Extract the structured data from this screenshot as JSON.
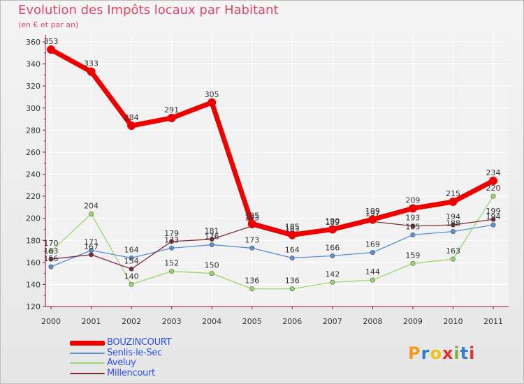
{
  "title": "Evolution des Impôts locaux par Habitant",
  "subtitle": "(en € et par an)",
  "logo": {
    "text": "Proxiti",
    "letters": [
      "P",
      "r",
      "o",
      "x",
      "i",
      "t",
      "i"
    ],
    "colors": [
      "#f29b1d",
      "#2f7fd6",
      "#f2c21b",
      "#e2332d",
      "#78b33b",
      "#2f7fd6",
      "#e2332d"
    ]
  },
  "chart_data": {
    "type": "line",
    "title": "Evolution des Impôts locaux par Habitant",
    "subtitle": "(en € et par an)",
    "xlabel": "",
    "ylabel": "",
    "x": [
      "2000",
      "2001",
      "2002",
      "2003",
      "2004",
      "2005",
      "2006",
      "2007",
      "2008",
      "2009",
      "2010",
      "2011"
    ],
    "ylim": [
      120,
      360
    ],
    "yticks": [
      120,
      140,
      160,
      180,
      200,
      220,
      240,
      260,
      280,
      300,
      320,
      340,
      360
    ],
    "grid": true,
    "legend_position": "bottom-left",
    "series": [
      {
        "name": "BOUZINCOURT",
        "color": "#ee0000",
        "highlight": true,
        "values": [
          353,
          333,
          284,
          291,
          305,
          195,
          185,
          190,
          199,
          209,
          215,
          234
        ],
        "labels": [
          "353",
          "333",
          "284",
          "291",
          "305",
          "195",
          "185",
          "190",
          "199",
          "209",
          "215",
          "234"
        ]
      },
      {
        "name": "Senlis-le-Sec",
        "color": "#5a8fd6",
        "highlight": false,
        "values": [
          156,
          171,
          164,
          173,
          176,
          173,
          164,
          166,
          169,
          185,
          188,
          194
        ],
        "labels": [
          "156",
          "171",
          "164",
          "173",
          "176",
          "173",
          "164",
          "166",
          "169",
          "185",
          "188",
          "194"
        ]
      },
      {
        "name": "Aveluy",
        "color": "#9bd86c",
        "highlight": false,
        "values": [
          170,
          204,
          140,
          152,
          150,
          136,
          136,
          142,
          144,
          159,
          163,
          220
        ],
        "labels": [
          "170",
          "204",
          "140",
          "152",
          "150",
          "136",
          "136",
          "142",
          "144",
          "159",
          "163",
          "220"
        ]
      },
      {
        "name": "Millencourt",
        "color": "#7a2c35",
        "highlight": false,
        "values": [
          163,
          167,
          154,
          179,
          181,
          193,
          183,
          189,
          197,
          193,
          194,
          199
        ],
        "labels": [
          "163",
          "167",
          "154",
          "179",
          "181",
          "193",
          "183",
          "189",
          "197",
          "193",
          "194",
          "199"
        ]
      }
    ]
  }
}
